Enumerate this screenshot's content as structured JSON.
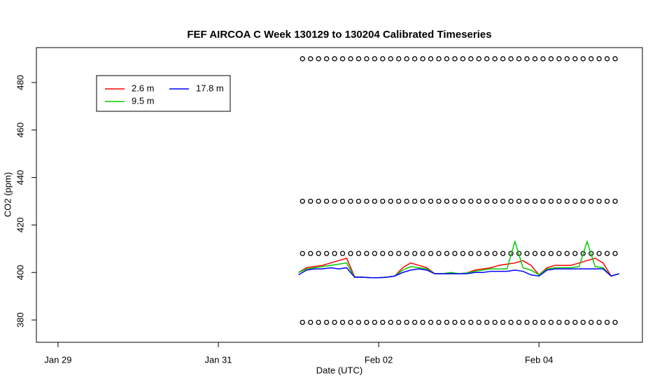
{
  "chart_data": {
    "type": "line",
    "title": "FEF AIRCOA C  Week 130129 to 130204  Calibrated Timeseries",
    "x_label": "Date (UTC)",
    "y_label": "CO2 (ppm)",
    "xlim": [
      -0.27,
      7.29
    ],
    "ylim": [
      370.6,
      494.7
    ],
    "xticks": [
      {
        "value": 0,
        "label": "Jan 29"
      },
      {
        "value": 2,
        "label": "Jan 31"
      },
      {
        "value": 4,
        "label": "Feb 02"
      },
      {
        "value": 6,
        "label": "Feb 04"
      }
    ],
    "yticks": [
      380,
      400,
      420,
      440,
      460,
      480
    ],
    "legend": "top-left",
    "x": [
      3.0,
      3.1,
      3.2,
      3.3,
      3.4,
      3.5,
      3.6,
      3.7,
      3.8,
      3.9,
      4.0,
      4.1,
      4.2,
      4.3,
      4.4,
      4.5,
      4.6,
      4.7,
      4.8,
      4.9,
      5.0,
      5.1,
      5.2,
      5.3,
      5.4,
      5.5,
      5.6,
      5.7,
      5.8,
      5.9,
      6.0,
      6.1,
      6.2,
      6.3,
      6.4,
      6.5,
      6.6,
      6.7,
      6.8,
      6.9,
      7.0
    ],
    "series": [
      {
        "name": "2.6 m",
        "color": "#ff0000",
        "values": [
          400,
          402,
          402.5,
          403,
          404,
          405,
          406,
          398.2,
          398,
          397.8,
          397.8,
          398,
          398.5,
          402,
          404,
          403,
          402,
          399.5,
          399.5,
          399.5,
          399.5,
          399.8,
          401,
          401.5,
          402,
          403,
          403.5,
          404,
          405,
          403,
          399,
          402,
          403,
          403,
          403,
          404,
          405,
          406,
          404,
          398.5,
          399.5
        ]
      },
      {
        "name": "9.5 m",
        "color": "#00cc00",
        "values": [
          400,
          401.5,
          402,
          402.5,
          403,
          403.5,
          404,
          398,
          398,
          397.8,
          397.8,
          398,
          398.5,
          401,
          402.5,
          402,
          401.5,
          399.5,
          399.5,
          400,
          399.5,
          399.8,
          400.5,
          401,
          401.5,
          401.5,
          401.5,
          413,
          402,
          401,
          399,
          401.5,
          402,
          402,
          402,
          402.5,
          413,
          402.5,
          402,
          398.5,
          399.5
        ]
      },
      {
        "name": "17.8 m",
        "color": "#0000ff",
        "values": [
          399,
          401,
          401.5,
          401.5,
          402,
          401.5,
          402,
          398,
          398,
          397.8,
          397.8,
          398,
          398.5,
          400,
          401,
          401.5,
          401,
          399.5,
          399.5,
          399.5,
          399.5,
          399.5,
          400,
          400,
          400.5,
          400.5,
          400.5,
          401,
          400.5,
          399,
          398.5,
          401,
          401.5,
          401.5,
          401.5,
          401.5,
          401.5,
          401.5,
          401.5,
          398.5,
          399.5
        ]
      }
    ],
    "standards": [
      {
        "color": "#000000",
        "x": [
          3.05,
          3.15,
          3.25,
          3.35,
          3.45,
          3.55,
          3.65,
          3.75,
          3.85,
          3.95,
          4.05,
          4.15,
          4.25,
          4.35,
          4.45,
          4.55,
          4.65,
          4.75,
          4.85,
          4.95,
          5.05,
          5.15,
          5.25,
          5.35,
          5.45,
          5.55,
          5.65,
          5.75,
          5.85,
          5.95,
          6.05,
          6.15,
          6.25,
          6.35,
          6.45,
          6.55,
          6.65,
          6.75,
          6.85,
          6.95
        ],
        "values": [
          490,
          490,
          490,
          490,
          490,
          490,
          490,
          490,
          490,
          490,
          490,
          490,
          490,
          490,
          490,
          490,
          490,
          490,
          490,
          490,
          490,
          490,
          490,
          490,
          490,
          490,
          490,
          490,
          490,
          490,
          490,
          490,
          490,
          490,
          490,
          490,
          490,
          490,
          490,
          490
        ]
      },
      {
        "color": "#000000",
        "x": [
          3.05,
          3.15,
          3.25,
          3.35,
          3.45,
          3.55,
          3.65,
          3.75,
          3.85,
          3.95,
          4.05,
          4.15,
          4.25,
          4.35,
          4.45,
          4.55,
          4.65,
          4.75,
          4.85,
          4.95,
          5.05,
          5.15,
          5.25,
          5.35,
          5.45,
          5.55,
          5.65,
          5.75,
          5.85,
          5.95,
          6.05,
          6.15,
          6.25,
          6.35,
          6.45,
          6.55,
          6.65,
          6.75,
          6.85,
          6.95
        ],
        "values": [
          430,
          430,
          430,
          430,
          430,
          430,
          430,
          430,
          430,
          430,
          430,
          430,
          430,
          430,
          430,
          430,
          430,
          430,
          430,
          430,
          430,
          430,
          430,
          430,
          430,
          430,
          430,
          430,
          430,
          430,
          430,
          430,
          430,
          430,
          430,
          430,
          430,
          430,
          430,
          430
        ]
      },
      {
        "color": "#000000",
        "x": [
          3.05,
          3.15,
          3.25,
          3.35,
          3.45,
          3.55,
          3.65,
          3.75,
          3.85,
          3.95,
          4.05,
          4.15,
          4.25,
          4.35,
          4.45,
          4.55,
          4.65,
          4.75,
          4.85,
          4.95,
          5.05,
          5.15,
          5.25,
          5.35,
          5.45,
          5.55,
          5.65,
          5.75,
          5.85,
          5.95,
          6.05,
          6.15,
          6.25,
          6.35,
          6.45,
          6.55,
          6.65,
          6.75,
          6.85,
          6.95
        ],
        "values": [
          408,
          408,
          408,
          408,
          408,
          408,
          408,
          408,
          408,
          408,
          408,
          408,
          408,
          408,
          408,
          408,
          408,
          408,
          408,
          408,
          408,
          408,
          408,
          408,
          408,
          408,
          408,
          408,
          408,
          408,
          408,
          408,
          408,
          408,
          408,
          408,
          408,
          408,
          408,
          408
        ]
      },
      {
        "color": "#000000",
        "x": [
          3.05,
          3.15,
          3.25,
          3.35,
          3.45,
          3.55,
          3.65,
          3.75,
          3.85,
          3.95,
          4.05,
          4.15,
          4.25,
          4.35,
          4.45,
          4.55,
          4.65,
          4.75,
          4.85,
          4.95,
          5.05,
          5.15,
          5.25,
          5.35,
          5.45,
          5.55,
          5.65,
          5.75,
          5.85,
          5.95,
          6.05,
          6.15,
          6.25,
          6.35,
          6.45,
          6.55,
          6.65,
          6.75,
          6.85,
          6.95
        ],
        "values": [
          379,
          379,
          379,
          379,
          379,
          379,
          379,
          379,
          379,
          379,
          379,
          379,
          379,
          379,
          379,
          379,
          379,
          379,
          379,
          379,
          379,
          379,
          379,
          379,
          379,
          379,
          379,
          379,
          379,
          379,
          379,
          379,
          379,
          379,
          379,
          379,
          379,
          379,
          379,
          379
        ]
      }
    ]
  }
}
